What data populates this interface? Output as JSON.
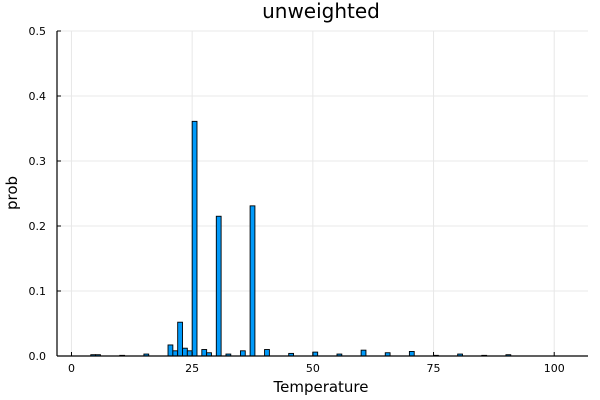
{
  "chart_data": {
    "type": "bar",
    "title": "unweighted",
    "xlabel": "Temperature",
    "ylabel": "prob",
    "xlim": [
      -3,
      107
    ],
    "ylim": [
      0,
      0.5
    ],
    "xticks": [
      0,
      25,
      50,
      75,
      100
    ],
    "yticks": [
      0.0,
      0.1,
      0.2,
      0.3,
      0.4,
      0.5
    ],
    "xtick_labels": [
      "0",
      "25",
      "50",
      "75",
      "100"
    ],
    "ytick_labels": [
      "0.0",
      "0.1",
      "0.2",
      "0.3",
      "0.4",
      "0.5"
    ],
    "grid": true,
    "legend": "none",
    "bin_width": 1,
    "bar_color": "#009AFA",
    "series": [
      {
        "bins_start": [
          4,
          5,
          10,
          15,
          20,
          21,
          22,
          23,
          24,
          25,
          27,
          28,
          30,
          32,
          35,
          37,
          40,
          45,
          50,
          55,
          60,
          65,
          70,
          75,
          80,
          85,
          90
        ],
        "values": [
          0.002,
          0.002,
          0.001,
          0.003,
          0.017,
          0.008,
          0.052,
          0.012,
          0.008,
          0.361,
          0.01,
          0.005,
          0.215,
          0.003,
          0.008,
          0.231,
          0.01,
          0.004,
          0.006,
          0.003,
          0.009,
          0.005,
          0.007,
          0.001,
          0.003,
          0.001,
          0.002
        ]
      }
    ]
  }
}
